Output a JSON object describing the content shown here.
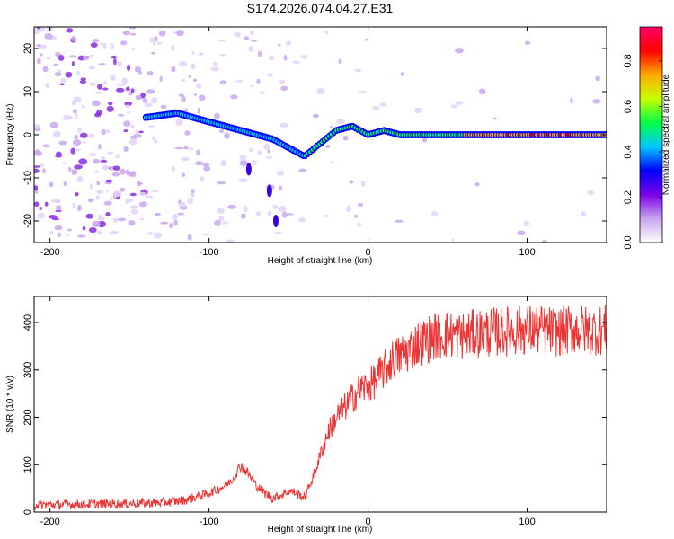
{
  "title": "S174.2026.074.04.27.E31",
  "chart_data": [
    {
      "type": "heatmap",
      "xlabel": "Height of straight line (km)",
      "ylabel": "Frequency (Hz)",
      "xlim": [
        -210,
        150
      ],
      "ylim": [
        -25,
        25
      ],
      "xticks": [
        -200,
        -100,
        0,
        100
      ],
      "yticks": [
        -20,
        -10,
        0,
        10,
        20
      ],
      "colorbar": {
        "label": "Normalized spectral amplitude",
        "ticks": [
          "0.0",
          "0.2",
          "0.4",
          "0.6",
          "0.8"
        ],
        "tick_values": [
          0.0,
          0.2,
          0.4,
          0.6,
          0.8
        ],
        "range": [
          0,
          0.95
        ],
        "colors": [
          "#ffffff",
          "#c7a4ee",
          "#7b00e6",
          "#0000ff",
          "#00c8ff",
          "#00ff44",
          "#c8ff00",
          "#ffaa00",
          "#ff0000",
          "#ff0066"
        ]
      },
      "ridge": {
        "x": [
          -140,
          -120,
          -110,
          -100,
          -90,
          -80,
          -70,
          -60,
          -50,
          -40,
          -30,
          -20,
          -10,
          0,
          10,
          20,
          40,
          60,
          80,
          100,
          120,
          150
        ],
        "freq_hz": [
          4,
          5,
          4,
          3,
          2,
          1,
          0,
          -1,
          -3,
          -5,
          -2,
          1,
          2,
          0,
          1,
          0,
          0,
          0,
          0,
          0,
          0,
          0
        ]
      }
    },
    {
      "type": "line",
      "xlabel": "Height of straight line (km)",
      "ylabel": "SNR (10 * v/v)",
      "xlim": [
        -210,
        150
      ],
      "ylim": [
        0,
        455
      ],
      "xticks": [
        -200,
        -100,
        0,
        100
      ],
      "yticks": [
        0,
        100,
        200,
        300,
        400
      ],
      "color": "#ee3333",
      "x": [
        -210,
        -190,
        -170,
        -150,
        -130,
        -115,
        -100,
        -90,
        -85,
        -80,
        -75,
        -70,
        -65,
        -60,
        -55,
        -50,
        -45,
        -40,
        -35,
        -30,
        -25,
        -20,
        -15,
        -10,
        -5,
        0,
        5,
        10,
        15,
        20,
        25,
        30,
        35,
        40,
        50,
        60,
        70,
        80,
        90,
        100,
        110,
        120,
        130,
        140,
        150
      ],
      "values": [
        15,
        16,
        17,
        18,
        20,
        25,
        40,
        55,
        70,
        100,
        80,
        55,
        40,
        30,
        35,
        45,
        40,
        30,
        70,
        120,
        170,
        200,
        220,
        240,
        260,
        265,
        280,
        300,
        320,
        330,
        340,
        355,
        360,
        370,
        375,
        372,
        378,
        380,
        382,
        385,
        384,
        380,
        386,
        383,
        385
      ]
    }
  ]
}
